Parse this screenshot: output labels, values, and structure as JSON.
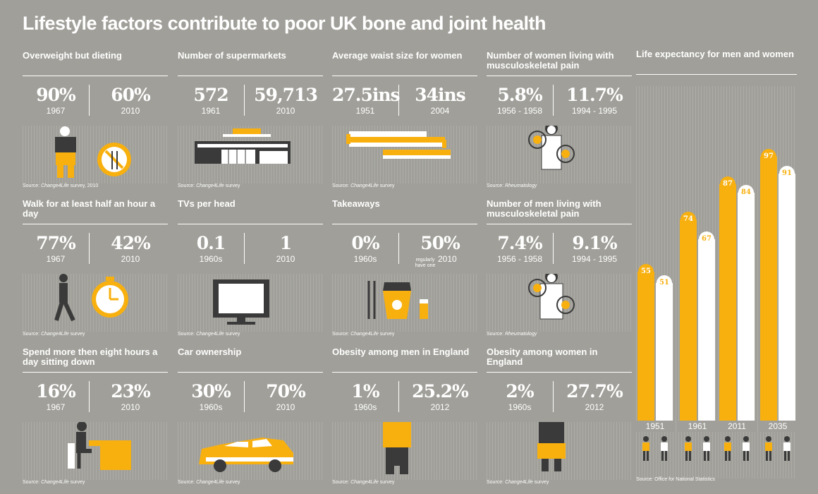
{
  "title": "Lifestyle factors contribute to poor UK bone and joint health",
  "panels": [
    {
      "title": "Overweight but dieting",
      "left": "90%",
      "left_year": "1967",
      "right": "60%",
      "right_year": "2010",
      "source_prefix": "Source: ",
      "source_name": "Change4Life",
      "source_suffix": " survey, 2010"
    },
    {
      "title": "Number of supermarkets",
      "left": "572",
      "left_year": "1961",
      "right": "59,713",
      "right_year": "2010",
      "source_prefix": "Source: ",
      "source_name": "Change4Life",
      "source_suffix": " survey"
    },
    {
      "title": "Average waist size for women",
      "left": "27.5ins",
      "left_year": "1951",
      "right": "34ins",
      "right_year": "2004",
      "source_prefix": "Source: ",
      "source_name": "Change4Life",
      "source_suffix": " survey"
    },
    {
      "title": "Number of women living with musculoskeletal pain",
      "left": "5.8%",
      "left_year": "1956 - 1958",
      "right": "11.7%",
      "right_year": "1994 - 1995",
      "source_prefix": "Source: ",
      "source_name": "Rheumatology",
      "source_suffix": ""
    },
    {
      "title": "Walk for at least half an hour a day",
      "left": "77%",
      "left_year": "1967",
      "right": "42%",
      "right_year": "2010",
      "source_prefix": "Source: ",
      "source_name": "Change4Life",
      "source_suffix": " survey"
    },
    {
      "title": "TVs per head",
      "left": "0.1",
      "left_year": "1960s",
      "right": "1",
      "right_year": "2010",
      "source_prefix": "Source: ",
      "source_name": "Change4Life",
      "source_suffix": " survey"
    },
    {
      "title": "Takeaways",
      "left": "0%",
      "left_year": "1960s",
      "right": "50%",
      "right_year": "2010",
      "right_note": "regularly have one",
      "source_prefix": "Source: ",
      "source_name": "Change4Life",
      "source_suffix": " survey"
    },
    {
      "title": "Number of men living with musculoskeletal pain",
      "left": "7.4%",
      "left_year": "1956 - 1958",
      "right": "9.1%",
      "right_year": "1994 - 1995",
      "source_prefix": "Source: ",
      "source_name": "Rheumatology",
      "source_suffix": ""
    },
    {
      "title": "Spend more then eight hours a day sitting down",
      "left": "16%",
      "left_year": "1967",
      "right": "23%",
      "right_year": "2010",
      "source_prefix": "Source: ",
      "source_name": "Change4Life",
      "source_suffix": " survey"
    },
    {
      "title": "Car ownership",
      "left": "30%",
      "left_year": "1960s",
      "right": "70%",
      "right_year": "2010",
      "source_prefix": "Source: ",
      "source_name": "Change4Life",
      "source_suffix": " survey"
    },
    {
      "title": "Obesity among men in England",
      "left": "1%",
      "left_year": "1960s",
      "right": "25.2%",
      "right_year": "2012",
      "source_prefix": "Source: ",
      "source_name": "Change4Life",
      "source_suffix": " survey"
    },
    {
      "title": "Obesity among women in England",
      "left": "2%",
      "left_year": "1960s",
      "right": "27.7%",
      "right_year": "2012",
      "source_prefix": "Source: ",
      "source_name": "Change4Life",
      "source_suffix": " survey"
    }
  ],
  "chart_data": {
    "type": "bar",
    "title": "Life expectancy for men and women",
    "categories": [
      "1951",
      "1961",
      "2011",
      "2035"
    ],
    "series": [
      {
        "values": [
          55,
          74,
          87,
          97
        ],
        "color": "#f8b00f"
      },
      {
        "values": [
          51,
          67,
          84,
          91
        ],
        "color": "#ffffff"
      }
    ],
    "source": "Source: Office for National Statistics"
  },
  "colors": {
    "background": "#a09f99",
    "accent": "#f8b00f",
    "dark": "#3a3a3a",
    "white": "#ffffff"
  }
}
